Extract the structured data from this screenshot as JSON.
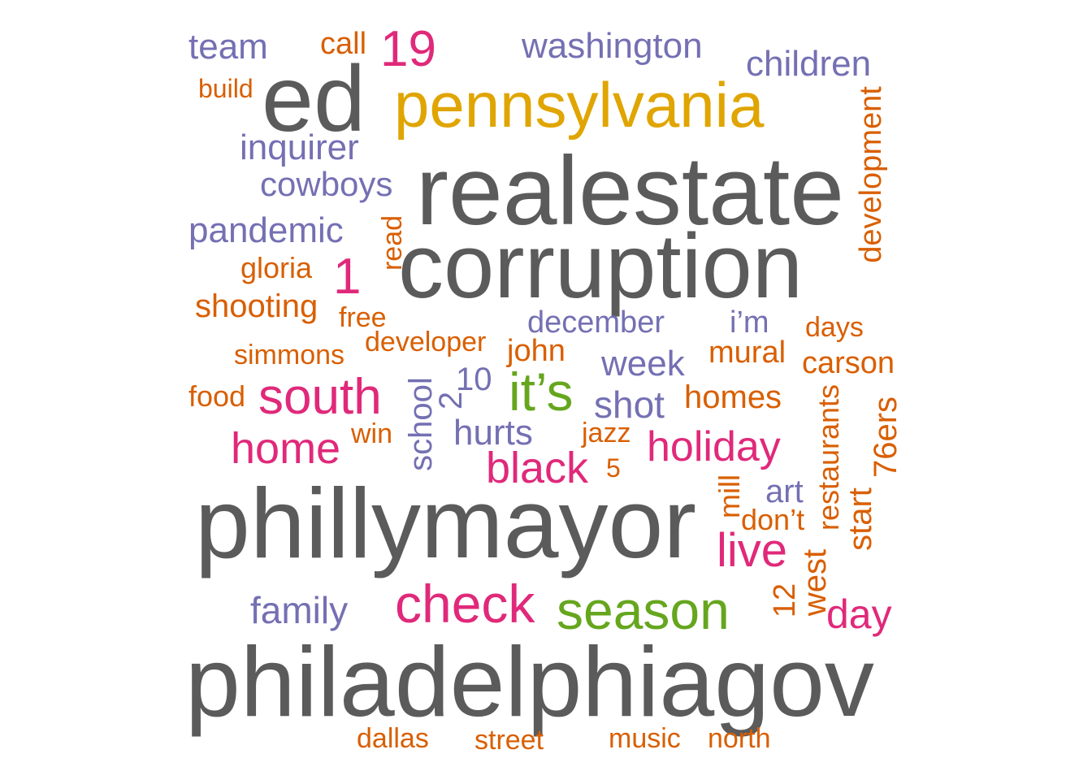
{
  "palette": {
    "gray": "#5b5b5b",
    "gold": "#e0a500",
    "pink": "#e0297a",
    "purple": "#7470b3",
    "orange": "#d95f02",
    "green": "#65a61e"
  },
  "words": [
    {
      "text": "realestate",
      "color": "gray"
    },
    {
      "text": "corruption",
      "color": "gray"
    },
    {
      "text": "phillymayor",
      "color": "gray"
    },
    {
      "text": "philadelphiagov",
      "color": "gray"
    },
    {
      "text": "ed",
      "color": "gray"
    },
    {
      "text": "pennsylvania",
      "color": "gold"
    },
    {
      "text": "19",
      "color": "pink"
    },
    {
      "text": "team",
      "color": "purple"
    },
    {
      "text": "call",
      "color": "orange"
    },
    {
      "text": "washington",
      "color": "purple"
    },
    {
      "text": "children",
      "color": "purple"
    },
    {
      "text": "build",
      "color": "orange"
    },
    {
      "text": "inquirer",
      "color": "purple"
    },
    {
      "text": "cowboys",
      "color": "purple"
    },
    {
      "text": "pandemic",
      "color": "purple"
    },
    {
      "text": "gloria",
      "color": "orange"
    },
    {
      "text": "1",
      "color": "pink"
    },
    {
      "text": "read",
      "color": "orange"
    },
    {
      "text": "development",
      "color": "orange"
    },
    {
      "text": "shooting",
      "color": "orange"
    },
    {
      "text": "free",
      "color": "orange"
    },
    {
      "text": "december",
      "color": "purple"
    },
    {
      "text": "i’m",
      "color": "purple"
    },
    {
      "text": "days",
      "color": "orange"
    },
    {
      "text": "simmons",
      "color": "orange"
    },
    {
      "text": "developer",
      "color": "orange"
    },
    {
      "text": "john",
      "color": "orange"
    },
    {
      "text": "mural",
      "color": "orange"
    },
    {
      "text": "carson",
      "color": "orange"
    },
    {
      "text": "school",
      "color": "purple"
    },
    {
      "text": "10",
      "color": "purple"
    },
    {
      "text": "2",
      "color": "purple"
    },
    {
      "text": "it’s",
      "color": "green"
    },
    {
      "text": "week",
      "color": "purple"
    },
    {
      "text": "food",
      "color": "orange"
    },
    {
      "text": "south",
      "color": "pink"
    },
    {
      "text": "shot",
      "color": "purple"
    },
    {
      "text": "homes",
      "color": "orange"
    },
    {
      "text": "restaurants",
      "color": "orange"
    },
    {
      "text": "home",
      "color": "pink"
    },
    {
      "text": "win",
      "color": "orange"
    },
    {
      "text": "hurts",
      "color": "purple"
    },
    {
      "text": "jazz",
      "color": "orange"
    },
    {
      "text": "holiday",
      "color": "pink"
    },
    {
      "text": "76ers",
      "color": "orange"
    },
    {
      "text": "black",
      "color": "pink"
    },
    {
      "text": "5",
      "color": "orange"
    },
    {
      "text": "mill",
      "color": "orange"
    },
    {
      "text": "art",
      "color": "purple"
    },
    {
      "text": "start",
      "color": "orange"
    },
    {
      "text": "don’t",
      "color": "orange"
    },
    {
      "text": "live",
      "color": "pink"
    },
    {
      "text": "west",
      "color": "orange"
    },
    {
      "text": "family",
      "color": "purple"
    },
    {
      "text": "check",
      "color": "pink"
    },
    {
      "text": "season",
      "color": "green"
    },
    {
      "text": "12",
      "color": "orange"
    },
    {
      "text": "day",
      "color": "pink"
    },
    {
      "text": "dallas",
      "color": "orange"
    },
    {
      "text": "street",
      "color": "orange"
    },
    {
      "text": "music",
      "color": "orange"
    },
    {
      "text": "north",
      "color": "orange"
    }
  ]
}
